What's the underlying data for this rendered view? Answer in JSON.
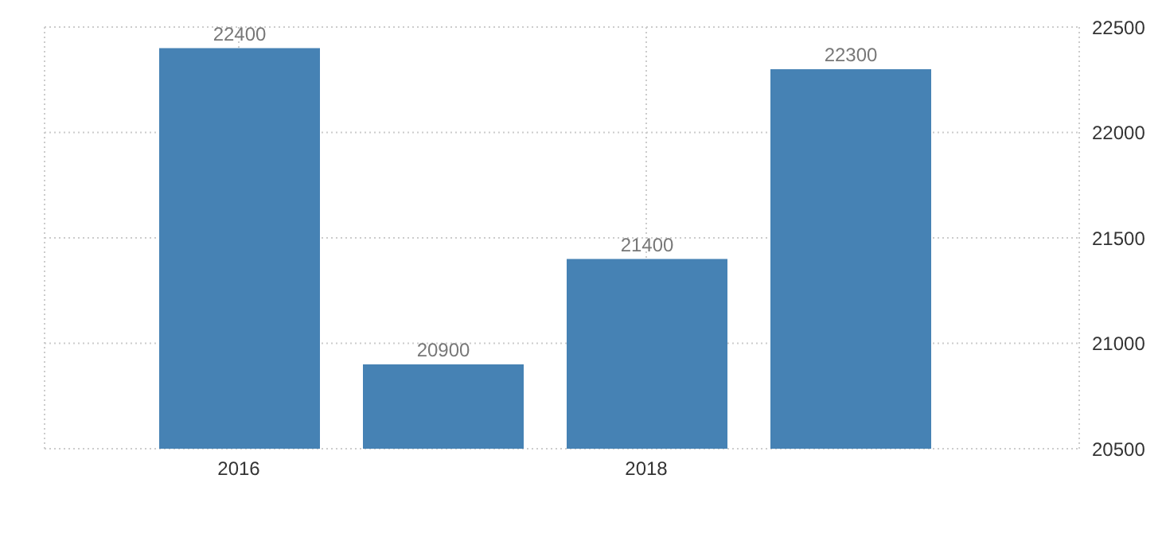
{
  "chart_data": {
    "type": "bar",
    "categories": [
      "2016",
      null,
      "2018",
      null
    ],
    "values": [
      22400,
      20900,
      21400,
      22300
    ],
    "color": "#4682b4",
    "ylim": [
      20500,
      22500
    ],
    "yticks": [
      20500,
      21000,
      21500,
      22000,
      22500
    ],
    "grid": true,
    "data_labels": true
  }
}
